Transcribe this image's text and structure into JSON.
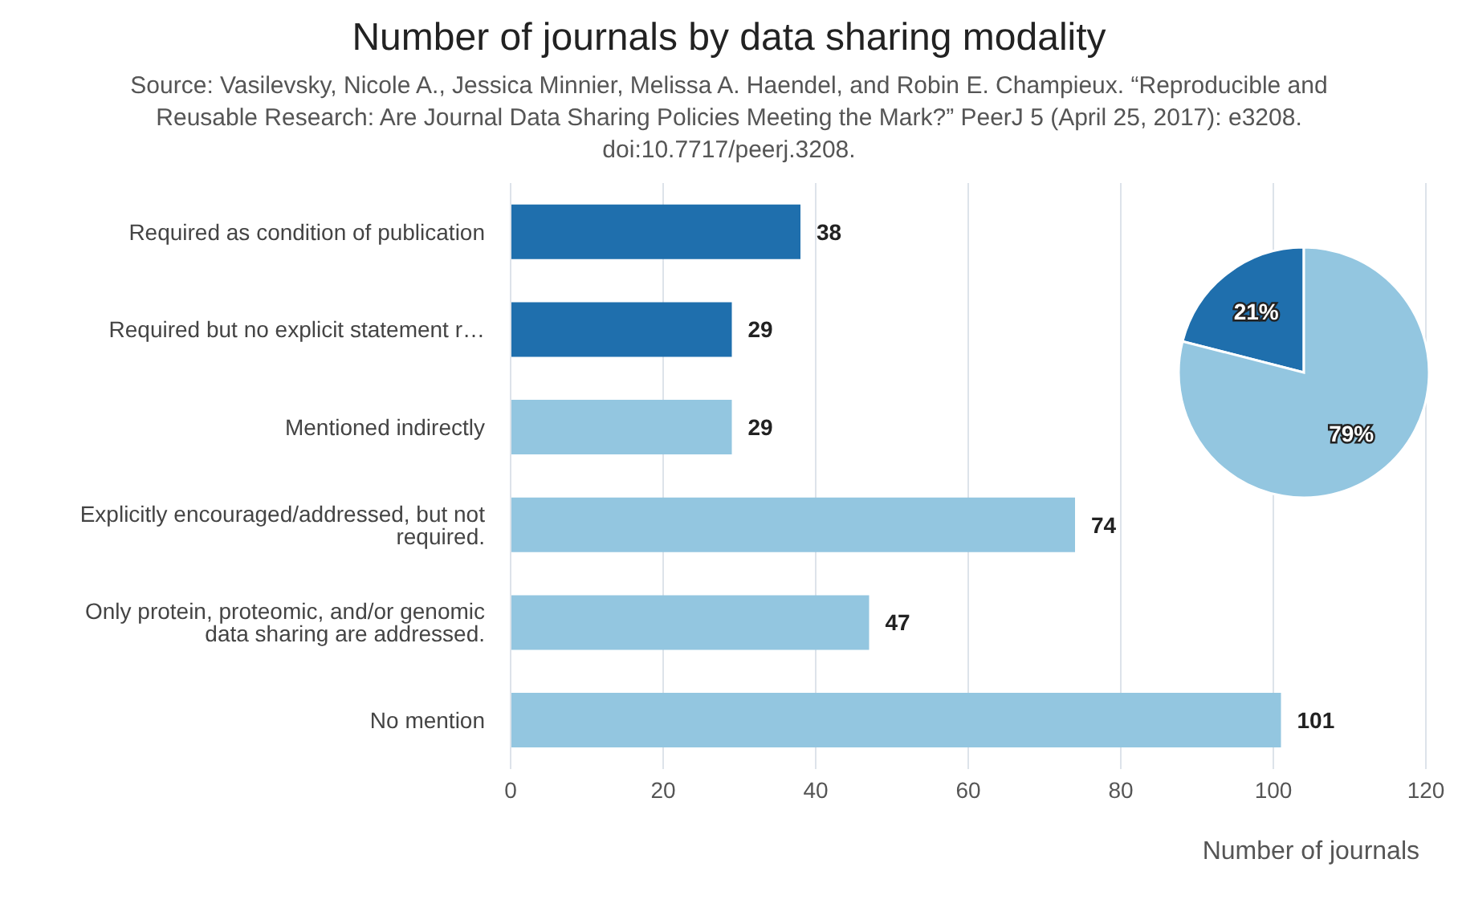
{
  "chart_data": [
    {
      "type": "bar",
      "orientation": "horizontal",
      "title": "Number of journals by data sharing modality",
      "subtitle": "Source: Vasilevsky, Nicole A., Jessica Minnier, Melissa A. Haendel, and Robin E. Champieux. “Reproducible and Reusable Research: Are Journal Data Sharing Policies Meeting the Mark?” PeerJ 5 (April 25, 2017): e3208. doi:10.7717/peerj.3208.",
      "xlabel": "Number of journals",
      "categories": [
        "Required as condition of publication",
        "Required but no explicit statement r…",
        "Mentioned indirectly",
        "Explicitly encouraged/addressed, but not required.",
        "Only protein, proteomic, and/or genomic data sharing are addressed.",
        "No mention"
      ],
      "values": [
        38,
        29,
        29,
        74,
        47,
        101
      ],
      "colors": [
        "#1f6fad",
        "#1f6fad",
        "#93c6e0",
        "#93c6e0",
        "#93c6e0",
        "#93c6e0"
      ],
      "xlim": [
        0,
        120
      ],
      "xticks": [
        0,
        20,
        40,
        60,
        80,
        100,
        120
      ],
      "grid": "x",
      "data_labels": true
    },
    {
      "type": "pie",
      "categories": [
        null,
        null
      ],
      "values": [
        21,
        79
      ],
      "colors": [
        "#1f6fad",
        "#93c6e0"
      ],
      "value_labels": [
        "21%",
        "79%"
      ]
    }
  ]
}
